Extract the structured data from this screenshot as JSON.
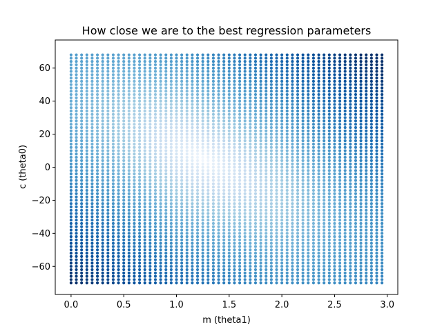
{
  "chart_data": {
    "type": "scatter",
    "title": "How close we are to the best regression parameters",
    "xlabel": "m (theta1)",
    "ylabel": "c (theta0)",
    "xlim": [
      -0.15,
      3.1
    ],
    "ylim": [
      -77,
      77
    ],
    "xticks": [
      0.0,
      0.5,
      1.0,
      1.5,
      2.0,
      2.5,
      3.0
    ],
    "xtick_labels": [
      "0.0",
      "0.5",
      "1.0",
      "1.5",
      "2.0",
      "2.5",
      "3.0"
    ],
    "yticks": [
      -60,
      -40,
      -20,
      0,
      20,
      40,
      60
    ],
    "ytick_labels": [
      "−60",
      "−40",
      "−20",
      "0",
      "20",
      "40",
      "60"
    ],
    "grid": {
      "m_start": 0.0,
      "m_step": 0.05,
      "m_count": 60,
      "c_start": -70,
      "c_step": 2,
      "c_count": 70
    },
    "color_encoding": "distance from best parameters (light = close, dark = far)",
    "best_m": 1.25,
    "best_c": 5,
    "colormap": "Blues",
    "colors": {
      "light": "#f7fbff",
      "mid": "#6baed6",
      "dark": "#08306b",
      "axis": "#000000"
    }
  }
}
